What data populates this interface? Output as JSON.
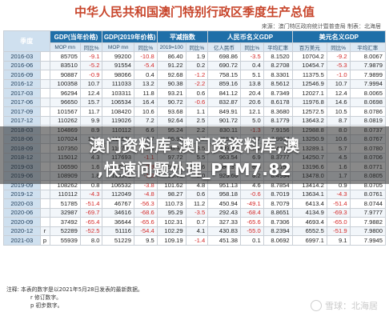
{
  "title": "中华人民共和国澳门特别行政区季度生产总值",
  "source": "来源：澳门特区政府统计暨普查局  制表：北海居",
  "headers": {
    "period": "季度",
    "groups": [
      "GDP(当年价格)",
      "GDP(2019年价格)",
      "平减指数",
      "人民币名义GDP",
      "美元名义GDP"
    ],
    "subs": [
      [
        "MOP mn",
        "同比%"
      ],
      [
        "MOP mn",
        "同比%"
      ],
      [
        "2019=100",
        "同比%"
      ],
      [
        "亿人民币",
        "同比%",
        "平均汇率"
      ],
      [
        "百万美元",
        "同比%",
        "平均汇率"
      ]
    ]
  },
  "rows": [
    {
      "p": "2016-03",
      "f": "",
      "v": [
        "85705",
        "-9.1",
        "99200",
        "-10.8",
        "86.40",
        "1.9",
        "698.86",
        "-3.5",
        "8.1520",
        "10704.2",
        "-9.2",
        "8.0067"
      ]
    },
    {
      "p": "2016-06",
      "f": "",
      "v": [
        "83510",
        "-5.2",
        "91554",
        "-5.4",
        "91.22",
        "0.2",
        "690.72",
        "0.4",
        "8.2708",
        "10454.7",
        "-5.3",
        "7.9879"
      ]
    },
    {
      "p": "2016-09",
      "f": "",
      "v": [
        "90887",
        "-0.9",
        "98066",
        "0.4",
        "92.68",
        "-1.2",
        "758.15",
        "5.1",
        "8.3301",
        "11375.5",
        "-1.0",
        "7.9899"
      ]
    },
    {
      "p": "2016-12",
      "f": "",
      "v": [
        "100358",
        "10.7",
        "111033",
        "13.2",
        "90.38",
        "-2.2",
        "859.16",
        "13.8",
        "8.5612",
        "12546.9",
        "10.7",
        "7.9994"
      ]
    },
    {
      "p": "2017-03",
      "f": "",
      "v": [
        "96294",
        "12.4",
        "103311",
        "11.8",
        "93.21",
        "0.6",
        "841.12",
        "20.4",
        "8.7349",
        "12027.1",
        "12.4",
        "8.0065"
      ]
    },
    {
      "p": "2017-06",
      "f": "",
      "v": [
        "96650",
        "15.7",
        "106534",
        "16.4",
        "90.72",
        "-0.6",
        "832.87",
        "20.6",
        "8.6178",
        "11976.8",
        "14.6",
        "8.0698"
      ]
    },
    {
      "p": "2017-09",
      "f": "",
      "v": [
        "101567",
        "11.7",
        "108420",
        "10.6",
        "93.68",
        "1.1",
        "849.91",
        "12.1",
        "8.3680",
        "12572.5",
        "10.5",
        "8.0786"
      ]
    },
    {
      "p": "2017-12",
      "f": "",
      "v": [
        "110262",
        "9.9",
        "119026",
        "7.2",
        "92.64",
        "2.5",
        "901.72",
        "5.0",
        "8.1779",
        "13643.2",
        "8.7",
        "8.0819"
      ]
    },
    {
      "p": "2018-03",
      "f": "",
      "v": [
        "104869",
        "8.9",
        "110112",
        "6.6",
        "95.24",
        "2.2",
        "830.11",
        "-1.3",
        "7.9156",
        "12988.8",
        "8.0",
        "8.0737"
      ]
    },
    {
      "p": "2018-06",
      "f": "",
      "v": [
        "107024",
        "10.7",
        "111578",
        "4.7",
        "95.92",
        "5.7",
        "855.52",
        "2.7",
        "7.9937",
        "13250.9",
        "10.6",
        "8.0767"
      ]
    },
    {
      "p": "2018-09",
      "f": "",
      "v": [
        "107350",
        "5.7",
        "110734",
        "2.1",
        "96.94",
        "3.5",
        "909.43",
        "7.0",
        "8.4717",
        "13289.1",
        "5.7",
        "8.0780"
      ]
    },
    {
      "p": "2018-12",
      "f": "",
      "v": [
        "115012",
        "4.3",
        "117693",
        "-1.1",
        "97.72",
        "5.5",
        "963.54",
        "6.9",
        "8.3777",
        "14250.7",
        "4.5",
        "8.0706"
      ]
    },
    {
      "p": "2019-03",
      "f": "",
      "v": [
        "106590",
        "1.6",
        "107003",
        "-2.8",
        "99.61",
        "4.6",
        "886.37",
        "6.8",
        "8.3157",
        "13196.6",
        "1.6",
        "8.0771"
      ]
    },
    {
      "p": "2019-06",
      "f": "",
      "v": [
        "108909",
        "1.8",
        "110275",
        "-1.2",
        "98.76",
        "3.0",
        "925.66",
        "8.2",
        "8.4994",
        "13478.0",
        "1.7",
        "8.0805"
      ]
    },
    {
      "p": "2019-09",
      "f": "",
      "v": [
        "108262",
        "0.8",
        "106532",
        "-3.8",
        "101.62",
        "4.8",
        "951.13",
        "4.6",
        "8.7854",
        "13414.2",
        "0.9",
        "8.0705"
      ]
    },
    {
      "p": "2019-12",
      "f": "",
      "v": [
        "110112",
        "-4.3",
        "112049",
        "-4.8",
        "98.27",
        "0.6",
        "958.18",
        "-0.6",
        "8.7019",
        "13634.1",
        "-4.3",
        "8.0761"
      ]
    },
    {
      "p": "2020-03",
      "f": "",
      "v": [
        "51785",
        "-51.4",
        "46767",
        "-56.3",
        "110.73",
        "11.2",
        "450.94",
        "-49.1",
        "8.7079",
        "6413.4",
        "-51.4",
        "8.0744"
      ]
    },
    {
      "p": "2020-06",
      "f": "",
      "v": [
        "32987",
        "-69.7",
        "34616",
        "-68.6",
        "95.29",
        "-3.5",
        "292.43",
        "-68.4",
        "8.8651",
        "4134.9",
        "-69.3",
        "7.9777"
      ]
    },
    {
      "p": "2020-09",
      "f": "",
      "v": [
        "37492",
        "-65.4",
        "36644",
        "-65.6",
        "102.31",
        "0.7",
        "327.33",
        "-65.6",
        "8.7306",
        "4693.4",
        "-65.0",
        "7.9882"
      ]
    },
    {
      "p": "2020-12",
      "f": "r",
      "v": [
        "52289",
        "-52.5",
        "51116",
        "-54.4",
        "102.29",
        "4.1",
        "430.83",
        "-55.0",
        "8.2394",
        "6552.5",
        "-51.9",
        "7.9800"
      ]
    },
    {
      "p": "2021-03",
      "f": "p",
      "v": [
        "55939",
        "8.0",
        "51229",
        "9.5",
        "109.19",
        "-1.4",
        "451.38",
        "0.1",
        "8.0692",
        "6997.1",
        "9.1",
        "7.9945"
      ]
    }
  ],
  "notes": [
    "注释:    本表的数字是以2021年5月28日发表的最新数据。",
    "r  修订数字。",
    "p  初步数字。"
  ],
  "overlay": {
    "line1": "澳门资料库-澳门资资料库,澳",
    "line2": ",快速问题处理_PTM7.82"
  },
  "watermark": "雪球：北海居",
  "colors": {
    "header": "#1f6fa8",
    "negative": "#d42a2a",
    "title": "#c8462c"
  }
}
